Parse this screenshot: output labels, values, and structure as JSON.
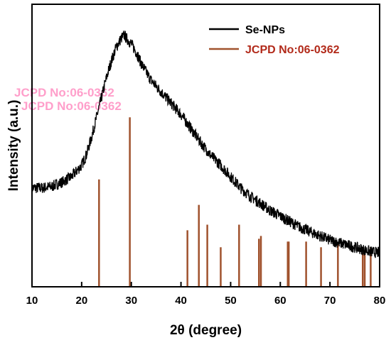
{
  "chart_data": {
    "type": "line",
    "xlabel": "2θ (degree)",
    "ylabel": "Intensity (a.u.)",
    "xlim": [
      10,
      80
    ],
    "xticks": [
      10,
      20,
      30,
      40,
      50,
      60,
      70,
      80
    ],
    "ylim": [
      0,
      1
    ],
    "yticks_shown": false,
    "legend_position": "top-right",
    "series": [
      {
        "name": "Se-NPs",
        "kind": "line",
        "color": "#000000",
        "x": [
          10,
          12,
          14,
          16,
          18,
          20,
          21,
          22,
          23,
          24,
          25,
          26,
          27,
          28,
          28.6,
          29,
          30,
          31,
          32,
          33,
          34,
          35,
          36,
          38,
          40,
          42,
          44,
          46,
          48,
          50,
          52,
          54,
          56,
          58,
          60,
          62,
          64,
          66,
          68,
          70,
          72,
          74,
          76,
          78,
          80
        ],
        "y": [
          0.35,
          0.35,
          0.355,
          0.37,
          0.39,
          0.43,
          0.47,
          0.53,
          0.6,
          0.67,
          0.74,
          0.8,
          0.85,
          0.88,
          0.89,
          0.88,
          0.86,
          0.83,
          0.79,
          0.76,
          0.73,
          0.71,
          0.69,
          0.65,
          0.61,
          0.56,
          0.51,
          0.465,
          0.43,
          0.39,
          0.35,
          0.32,
          0.295,
          0.27,
          0.25,
          0.23,
          0.21,
          0.195,
          0.18,
          0.165,
          0.155,
          0.145,
          0.135,
          0.125,
          0.12
        ]
      },
      {
        "name": "JCPD No:06-0362",
        "kind": "stick",
        "color": "#a0522d",
        "x": [
          23.5,
          29.7,
          41.3,
          43.6,
          45.3,
          48.0,
          51.7,
          55.7,
          56.1,
          61.5,
          61.7,
          65.2,
          68.2,
          71.6,
          76.6,
          77.0,
          78.2
        ],
        "y": [
          0.38,
          0.6,
          0.2,
          0.29,
          0.22,
          0.14,
          0.22,
          0.17,
          0.18,
          0.16,
          0.16,
          0.16,
          0.14,
          0.15,
          0.12,
          0.13,
          0.14
        ]
      }
    ]
  },
  "watermark": {
    "line1": "JCPD No:06-0362",
    "line2": "JCPD No:06-0362"
  }
}
